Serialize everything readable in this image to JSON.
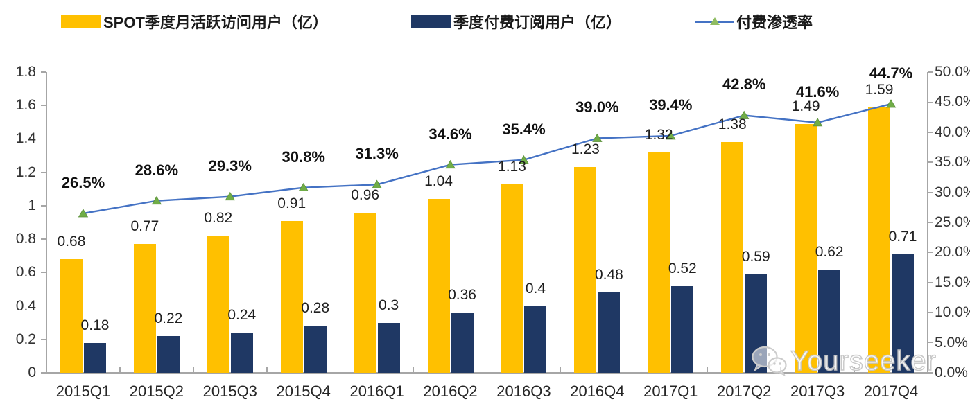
{
  "legend": {
    "mau_label": "SPOT季度月活跃访问用户（亿）",
    "subs_label": "季度付费订阅用户（亿）",
    "penetration_label": "付费渗透率"
  },
  "colors": {
    "mau_bar": "#FFC000",
    "subs_bar": "#1F3864",
    "line": "#4472C4",
    "marker": "#70AD47",
    "axis": "#A6A6A6"
  },
  "chart_data": {
    "type": "bar",
    "subtype": "combo-bar-line",
    "categories": [
      "2015Q1",
      "2015Q2",
      "2015Q3",
      "2015Q4",
      "2016Q1",
      "2016Q2",
      "2016Q3",
      "2016Q4",
      "2017Q1",
      "2017Q2",
      "2017Q3",
      "2017Q4"
    ],
    "series": [
      {
        "name": "SPOT季度月活跃访问用户（亿）",
        "type": "bar",
        "axis": "left",
        "color": "#FFC000",
        "values": [
          0.68,
          0.77,
          0.82,
          0.91,
          0.96,
          1.04,
          1.13,
          1.23,
          1.32,
          1.38,
          1.49,
          1.59
        ],
        "value_labels": [
          "0.68",
          "0.77",
          "0.82",
          "0.91",
          "0.96",
          "1.04",
          "1.13",
          "1.23",
          "1.32",
          "1.38",
          "1.49",
          "1.59"
        ]
      },
      {
        "name": "季度付费订阅用户（亿）",
        "type": "bar",
        "axis": "left",
        "color": "#1F3864",
        "values": [
          0.18,
          0.22,
          0.24,
          0.28,
          0.3,
          0.36,
          0.4,
          0.48,
          0.52,
          0.59,
          0.62,
          0.71
        ],
        "value_labels": [
          "0.18",
          "0.22",
          "0.24",
          "0.28",
          "0.3",
          "0.36",
          "0.4",
          "0.48",
          "0.52",
          "0.59",
          "0.62",
          "0.71"
        ]
      },
      {
        "name": "付费渗透率",
        "type": "line",
        "axis": "right",
        "color": "#4472C4",
        "marker": "triangle",
        "marker_color": "#70AD47",
        "values": [
          26.5,
          28.6,
          29.3,
          30.8,
          31.3,
          34.6,
          35.4,
          39.0,
          39.4,
          42.8,
          41.6,
          44.7
        ],
        "value_labels": [
          "26.5%",
          "28.6%",
          "29.3%",
          "30.8%",
          "31.3%",
          "34.6%",
          "35.4%",
          "39.0%",
          "39.4%",
          "42.8%",
          "41.6%",
          "44.7%"
        ]
      }
    ],
    "left_axis": {
      "min": 0,
      "max": 1.8,
      "step": 0.2,
      "ticks_top_down": [
        "1.8",
        "1.6",
        "1.4",
        "1.2",
        "1",
        "0.8",
        "0.6",
        "0.4",
        "0.2",
        "0"
      ]
    },
    "right_axis": {
      "min": 0,
      "max": 50,
      "step": 5,
      "ticks_top_down": [
        "50.0%",
        "45.0%",
        "40.0%",
        "35.0%",
        "30.0%",
        "25.0%",
        "20.0%",
        "15.0%",
        "10.0%",
        "5.0%",
        "0.0%"
      ]
    },
    "grid": false,
    "legend_position": "top",
    "title": ""
  },
  "watermark": {
    "text": "Yourseeker",
    "icon": "wechat-icon"
  }
}
